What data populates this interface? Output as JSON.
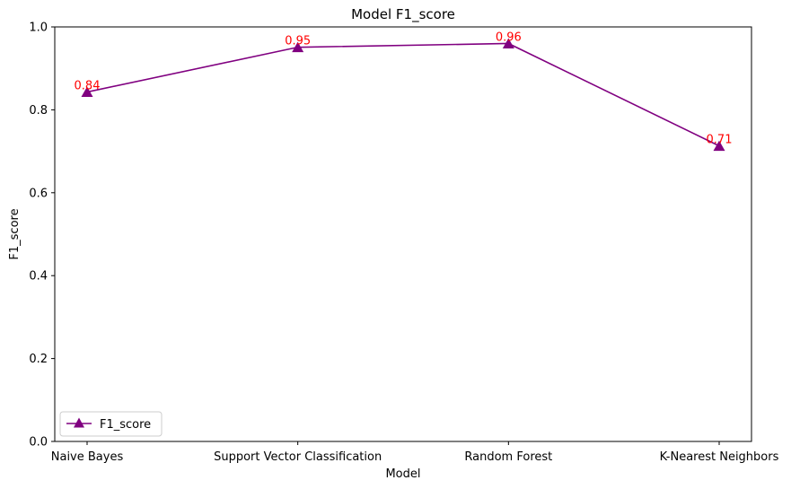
{
  "chart_data": {
    "type": "line",
    "title": "Model F1_score",
    "xlabel": "Model",
    "ylabel": "F1_score",
    "categories": [
      "Naive Bayes",
      "Support Vector Classification",
      "Random Forest",
      "K-Nearest Neighbors"
    ],
    "series": [
      {
        "name": "F1_score",
        "values": [
          0.843,
          0.951,
          0.96,
          0.713
        ],
        "data_labels": [
          "0.84",
          "0.95",
          "0.96",
          "0.71"
        ],
        "color": "#800080",
        "marker": "triangle-up"
      }
    ],
    "data_label_color": "#ff0000",
    "ylim": [
      0,
      1.0
    ],
    "yticks": [
      "0.0",
      "0.2",
      "0.4",
      "0.6",
      "0.8",
      "1.0"
    ],
    "grid": false,
    "legend": "lower-left"
  }
}
